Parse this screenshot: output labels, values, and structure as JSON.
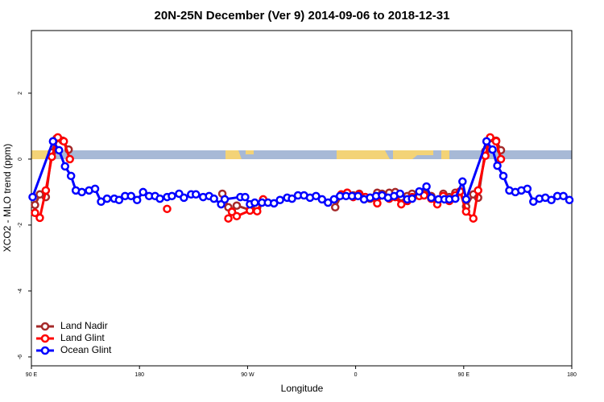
{
  "chart_data": {
    "type": "line",
    "title": "20N-25N December (Ver 9)   2014-09-06 to 2018-12-31",
    "x_label": "Longitude",
    "y_label": "XCO2 - MLO trend (ppm)",
    "xlim": [
      90,
      540
    ],
    "ylim": [
      -6.27,
      3.9
    ],
    "xticks": [
      {
        "value": 90,
        "label": "90 E"
      },
      180,
      {
        "value": 270,
        "label": "90 W"
      },
      {
        "value": 360,
        "label": "0"
      },
      {
        "value": 450,
        "label": "90 E"
      },
      {
        "value": 540,
        "label": "180"
      }
    ],
    "yticks": [
      -6,
      -4,
      -2,
      0,
      2
    ],
    "legend": "bottom-left",
    "series": [
      {
        "name": "Land Nadir",
        "color": "#a52a2a",
        "x": [
          93,
          97,
          102,
          107,
          111,
          116,
          121,
          249,
          254,
          257,
          261,
          272,
          278,
          283,
          343,
          348,
          353,
          358,
          363,
          368,
          372,
          378,
          382,
          388,
          393,
          398,
          403,
          407,
          413,
          417,
          423,
          428,
          433,
          438,
          443,
          447,
          452,
          458,
          462,
          468,
          472,
          477,
          481
        ],
        "values": [
          -1.39,
          -1.07,
          -1.15,
          0.2,
          0.63,
          0.56,
          0.29,
          -1.05,
          -1.46,
          -1.59,
          -1.41,
          -1.54,
          -1.46,
          -1.24,
          -1.46,
          -1.1,
          -1.02,
          -1.1,
          -1.05,
          -1.15,
          -1.2,
          -1.02,
          -1.05,
          -1.02,
          -1.0,
          -1.15,
          -1.12,
          -1.05,
          -1.02,
          -1.05,
          -1.12,
          -1.27,
          -1.05,
          -1.15,
          -1.02,
          -0.98,
          -1.44,
          -1.07,
          -1.17,
          0.24,
          0.63,
          0.56,
          0.27
        ]
      },
      {
        "name": "Land Glint",
        "color": "#ff0000",
        "x": [
          93,
          97,
          102,
          107,
          112,
          117,
          122,
          203,
          254,
          257,
          261,
          272,
          278,
          283,
          348,
          353,
          358,
          363,
          368,
          372,
          378,
          382,
          388,
          393,
          398,
          403,
          407,
          413,
          417,
          423,
          428,
          433,
          438,
          443,
          447,
          452,
          458,
          462,
          468,
          472,
          477,
          481
        ],
        "values": [
          -1.63,
          -1.78,
          -0.95,
          0.07,
          0.66,
          0.54,
          0,
          -1.51,
          -1.8,
          -1.6,
          -1.73,
          -1.56,
          -1.58,
          -1.22,
          -1.07,
          -1.02,
          -1.15,
          -1.07,
          -1.15,
          -1.17,
          -1.34,
          -1.1,
          -1.2,
          -1.15,
          -1.37,
          -1.27,
          -1.15,
          -1.12,
          -1.1,
          -1.2,
          -1.37,
          -1.12,
          -1.27,
          -1.1,
          -0.98,
          -1.59,
          -1.8,
          -0.95,
          0.1,
          0.66,
          0.54,
          0
        ]
      },
      {
        "name": "Ocean Glint",
        "color": "#0000ff",
        "x": [
          91,
          108,
          113,
          118,
          123,
          127,
          132,
          138,
          143,
          148,
          153,
          159,
          163,
          168,
          173,
          178,
          183,
          188,
          193,
          197,
          203,
          207,
          213,
          217,
          223,
          227,
          233,
          238,
          242,
          248,
          251,
          264,
          268,
          272,
          276,
          282,
          287,
          292,
          297,
          303,
          307,
          312,
          317,
          322,
          327,
          332,
          337,
          342,
          347,
          352,
          357,
          362,
          367,
          372,
          377,
          382,
          387,
          392,
          397,
          403,
          407,
          413,
          419,
          423,
          429,
          434,
          438,
          443,
          449,
          452,
          469,
          474,
          478,
          483,
          488,
          493,
          498,
          503,
          508,
          513,
          518,
          523,
          528,
          533,
          538
        ],
        "values": [
          -1.15,
          0.54,
          0.27,
          -0.22,
          -0.51,
          -0.95,
          -1.0,
          -0.95,
          -0.9,
          -1.29,
          -1.2,
          -1.2,
          -1.24,
          -1.12,
          -1.12,
          -1.24,
          -1.0,
          -1.12,
          -1.12,
          -1.2,
          -1.15,
          -1.12,
          -1.05,
          -1.17,
          -1.07,
          -1.07,
          -1.15,
          -1.12,
          -1.2,
          -1.37,
          -1.22,
          -1.15,
          -1.15,
          -1.37,
          -1.32,
          -1.32,
          -1.32,
          -1.34,
          -1.24,
          -1.17,
          -1.2,
          -1.1,
          -1.1,
          -1.17,
          -1.12,
          -1.22,
          -1.32,
          -1.22,
          -1.12,
          -1.12,
          -1.12,
          -1.12,
          -1.22,
          -1.17,
          -1.12,
          -1.1,
          -1.17,
          -1.12,
          -1.05,
          -1.22,
          -1.2,
          -0.98,
          -0.83,
          -1.17,
          -1.22,
          -1.22,
          -1.22,
          -1.2,
          -0.68,
          -1.22,
          0.54,
          0.29,
          -0.2,
          -0.51,
          -0.95,
          -1.0,
          -0.95,
          -0.9,
          -1.29,
          -1.2,
          -1.17,
          -1.24,
          -1.12,
          -1.12,
          -1.24
        ]
      }
    ]
  }
}
